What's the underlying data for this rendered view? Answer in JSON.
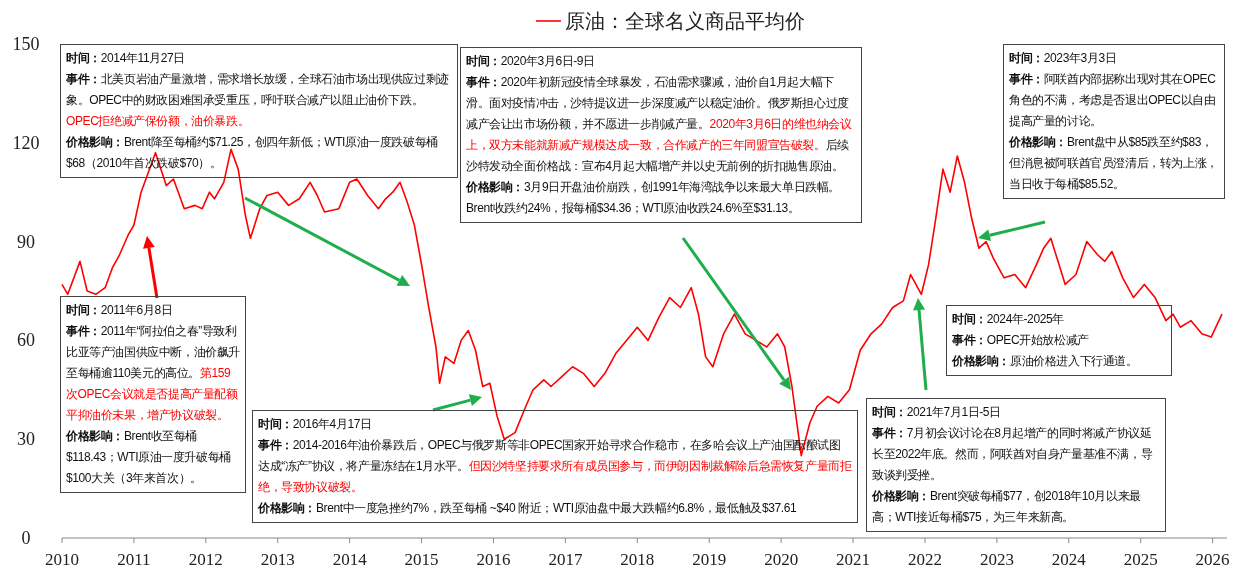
{
  "chart_data": {
    "type": "line",
    "legend": "top",
    "x": [
      2010.0,
      2010.08,
      2010.25,
      2010.35,
      2010.47,
      2010.6,
      2010.7,
      2010.8,
      2010.92,
      2011.0,
      2011.1,
      2011.3,
      2011.45,
      2011.55,
      2011.7,
      2011.85,
      2011.95,
      2012.05,
      2012.12,
      2012.25,
      2012.35,
      2012.45,
      2012.55,
      2012.62,
      2012.75,
      2012.85,
      2013.0,
      2013.15,
      2013.3,
      2013.45,
      2013.55,
      2013.65,
      2013.85,
      2014.0,
      2014.1,
      2014.25,
      2014.4,
      2014.5,
      2014.6,
      2014.7,
      2014.8,
      2014.9,
      2015.0,
      2015.1,
      2015.2,
      2015.25,
      2015.33,
      2015.45,
      2015.55,
      2015.65,
      2015.75,
      2015.85,
      2015.95,
      2016.05,
      2016.15,
      2016.3,
      2016.45,
      2016.55,
      2016.7,
      2016.8,
      2016.95,
      2017.1,
      2017.25,
      2017.4,
      2017.55,
      2017.7,
      2017.85,
      2018.0,
      2018.15,
      2018.3,
      2018.45,
      2018.6,
      2018.75,
      2018.85,
      2018.95,
      2019.05,
      2019.2,
      2019.35,
      2019.5,
      2019.65,
      2019.8,
      2019.95,
      2020.05,
      2020.15,
      2020.28,
      2020.4,
      2020.5,
      2020.65,
      2020.8,
      2020.95,
      2021.1,
      2021.25,
      2021.4,
      2021.55,
      2021.7,
      2021.8,
      2021.95,
      2022.05,
      2022.15,
      2022.25,
      2022.35,
      2022.45,
      2022.55,
      2022.65,
      2022.75,
      2022.85,
      2022.95,
      2023.1,
      2023.25,
      2023.4,
      2023.55,
      2023.65,
      2023.75,
      2023.85,
      2023.95,
      2024.1,
      2024.25,
      2024.4,
      2024.5,
      2024.6,
      2024.75,
      2024.9,
      2025.05,
      2025.2,
      2025.35,
      2025.45,
      2025.55,
      2025.7,
      2025.85,
      2025.98,
      2026.13
    ],
    "series": [
      {
        "name": "原油：全球名义商品平均价",
        "color": "#ff0000",
        "values": [
          77,
          74,
          84,
          75,
          74,
          76,
          82,
          86,
          92,
          95,
          105,
          117,
          107,
          109,
          100,
          101,
          100,
          105,
          103,
          108,
          118,
          112,
          98,
          91,
          100,
          104,
          105,
          101,
          103,
          108,
          104,
          99,
          100,
          108,
          109,
          104,
          100,
          103,
          105,
          108,
          102,
          95,
          83,
          70,
          58,
          47,
          55,
          53,
          60,
          63,
          57,
          46,
          47,
          37,
          30,
          32,
          40,
          45,
          48,
          46,
          49,
          52,
          50,
          46,
          50,
          56,
          60,
          64,
          60,
          67,
          73,
          70,
          76,
          68,
          55,
          52,
          62,
          68,
          62,
          60,
          58,
          62,
          58,
          46,
          25,
          35,
          40,
          43,
          41,
          45,
          57,
          62,
          65,
          70,
          72,
          80,
          74,
          83,
          97,
          112,
          105,
          116,
          108,
          97,
          88,
          90,
          85,
          79,
          80,
          76,
          83,
          88,
          91,
          84,
          77,
          80,
          90,
          86,
          84,
          87,
          79,
          73,
          77,
          73,
          66,
          68,
          64,
          66,
          62,
          61,
          68
        ]
      }
    ],
    "xlim": [
      2010,
      2026.2
    ],
    "xticks": [
      2010,
      2011,
      2012,
      2013,
      2014,
      2015,
      2016,
      2017,
      2018,
      2019,
      2020,
      2021,
      2022,
      2023,
      2024,
      2025,
      2026
    ],
    "ylim": [
      0,
      150
    ],
    "yticks": [
      0,
      30,
      60,
      90,
      120,
      150
    ],
    "annotations": [
      "时间：",
      "2011年6月8日",
      "事件：",
      "2011年“阿拉伯之春”导致利比亚等产油国供应中断，油价飙升至每桶逾110美元的高位。",
      "第159次OPEC会议就是否提高产量配额平抑油价未果，增产协议破裂。",
      "价格影响：",
      "Brent收至每桶$118.43；WTI原油一度升破每桶$100大关（3年来首次）。",
      "时间：",
      "2014年11月27日",
      "事件：",
      "北美页岩油产量激增，需求增长放缓，全球石油市场出现供应过剩迹象。OPEC中的财政困难国承受重压，呼吁联合减产以阻止油价下跌。",
      "OPEC拒绝减产保份额，油价暴跌。",
      "价格影响：",
      "Brent降至每桶约$71.25，创四年新低；WTI原油一度跌破每桶$68（2010年首次跌破$70）。",
      "时间：",
      "2016年4月17日",
      "事件：",
      "2014-2016年油价暴跌后，OPEC与俄罗斯等非OPEC国家开始寻求合作稳市，在多哈会议上产油国酝酿试图达成“冻产”协议，将产量冻结在1月水平。",
      "但因沙特坚持要求所有成员国参与，而伊朗因制裁解除后急需恢复产量而拒绝，导致协议破裂。",
      "价格影响：",
      "Brent中一度急挫约7%，跌至每桶 ~$40 附近；WTI原油盘中最大跌幅约6.8%，最低触及$37.61",
      "时间：",
      "2020年3月6日-9日",
      "事件：",
      "2020年初新冠疫情全球暴发，石油需求骤减，油价自1月起大幅下滑。面对疫情冲击，沙特提议进一步深度减产以稳定油价。俄罗斯担心过度减产会让出市场份额，并不愿进一步削减产量。",
      "2020年3月6日的维也纳会议上，双方未能就新减产规模达成一致，合作减产的三年同盟宣告破裂。",
      "后续沙特发动全面价格战：宣布4月起大幅增产并以史无前例的折扣抛售原油。",
      "价格影响：",
      "3月9日开盘油价崩跌，创1991年海湾战争以来最大单日跌幅。Brent收跌约24%，报每桶$34.36；WTI原油收跌24.6%至$31.13。",
      "时间：",
      "2021年7月1日-5日",
      "事件：",
      "7月初会议讨论在8月起增产的同时将减产协议延长至2022年底。然而，阿联酋对自身产量基准不满，导致谈判受挫。",
      "价格影响：",
      "Brent突破每桶$77，创2018年10月以来最高；WTI接近每桶$75，为三年来新高。",
      "时间：",
      "2023年3月3日",
      "事件：",
      "阿联酋内部据称出现对其在OPEC角色的不满，考虑是否退出OPEC以自由提高产量的讨论。",
      "价格影响：",
      "Brent盘中从$85跌至约$83，但消息被阿联酋官员澄清后，转为上涨，当日收于每桶$85.52。",
      "时间：",
      "2024年-2025年",
      "事件：",
      "OPEC开始放松减产",
      "价格影响：",
      "原油价格进入下行通道。"
    ]
  }
}
